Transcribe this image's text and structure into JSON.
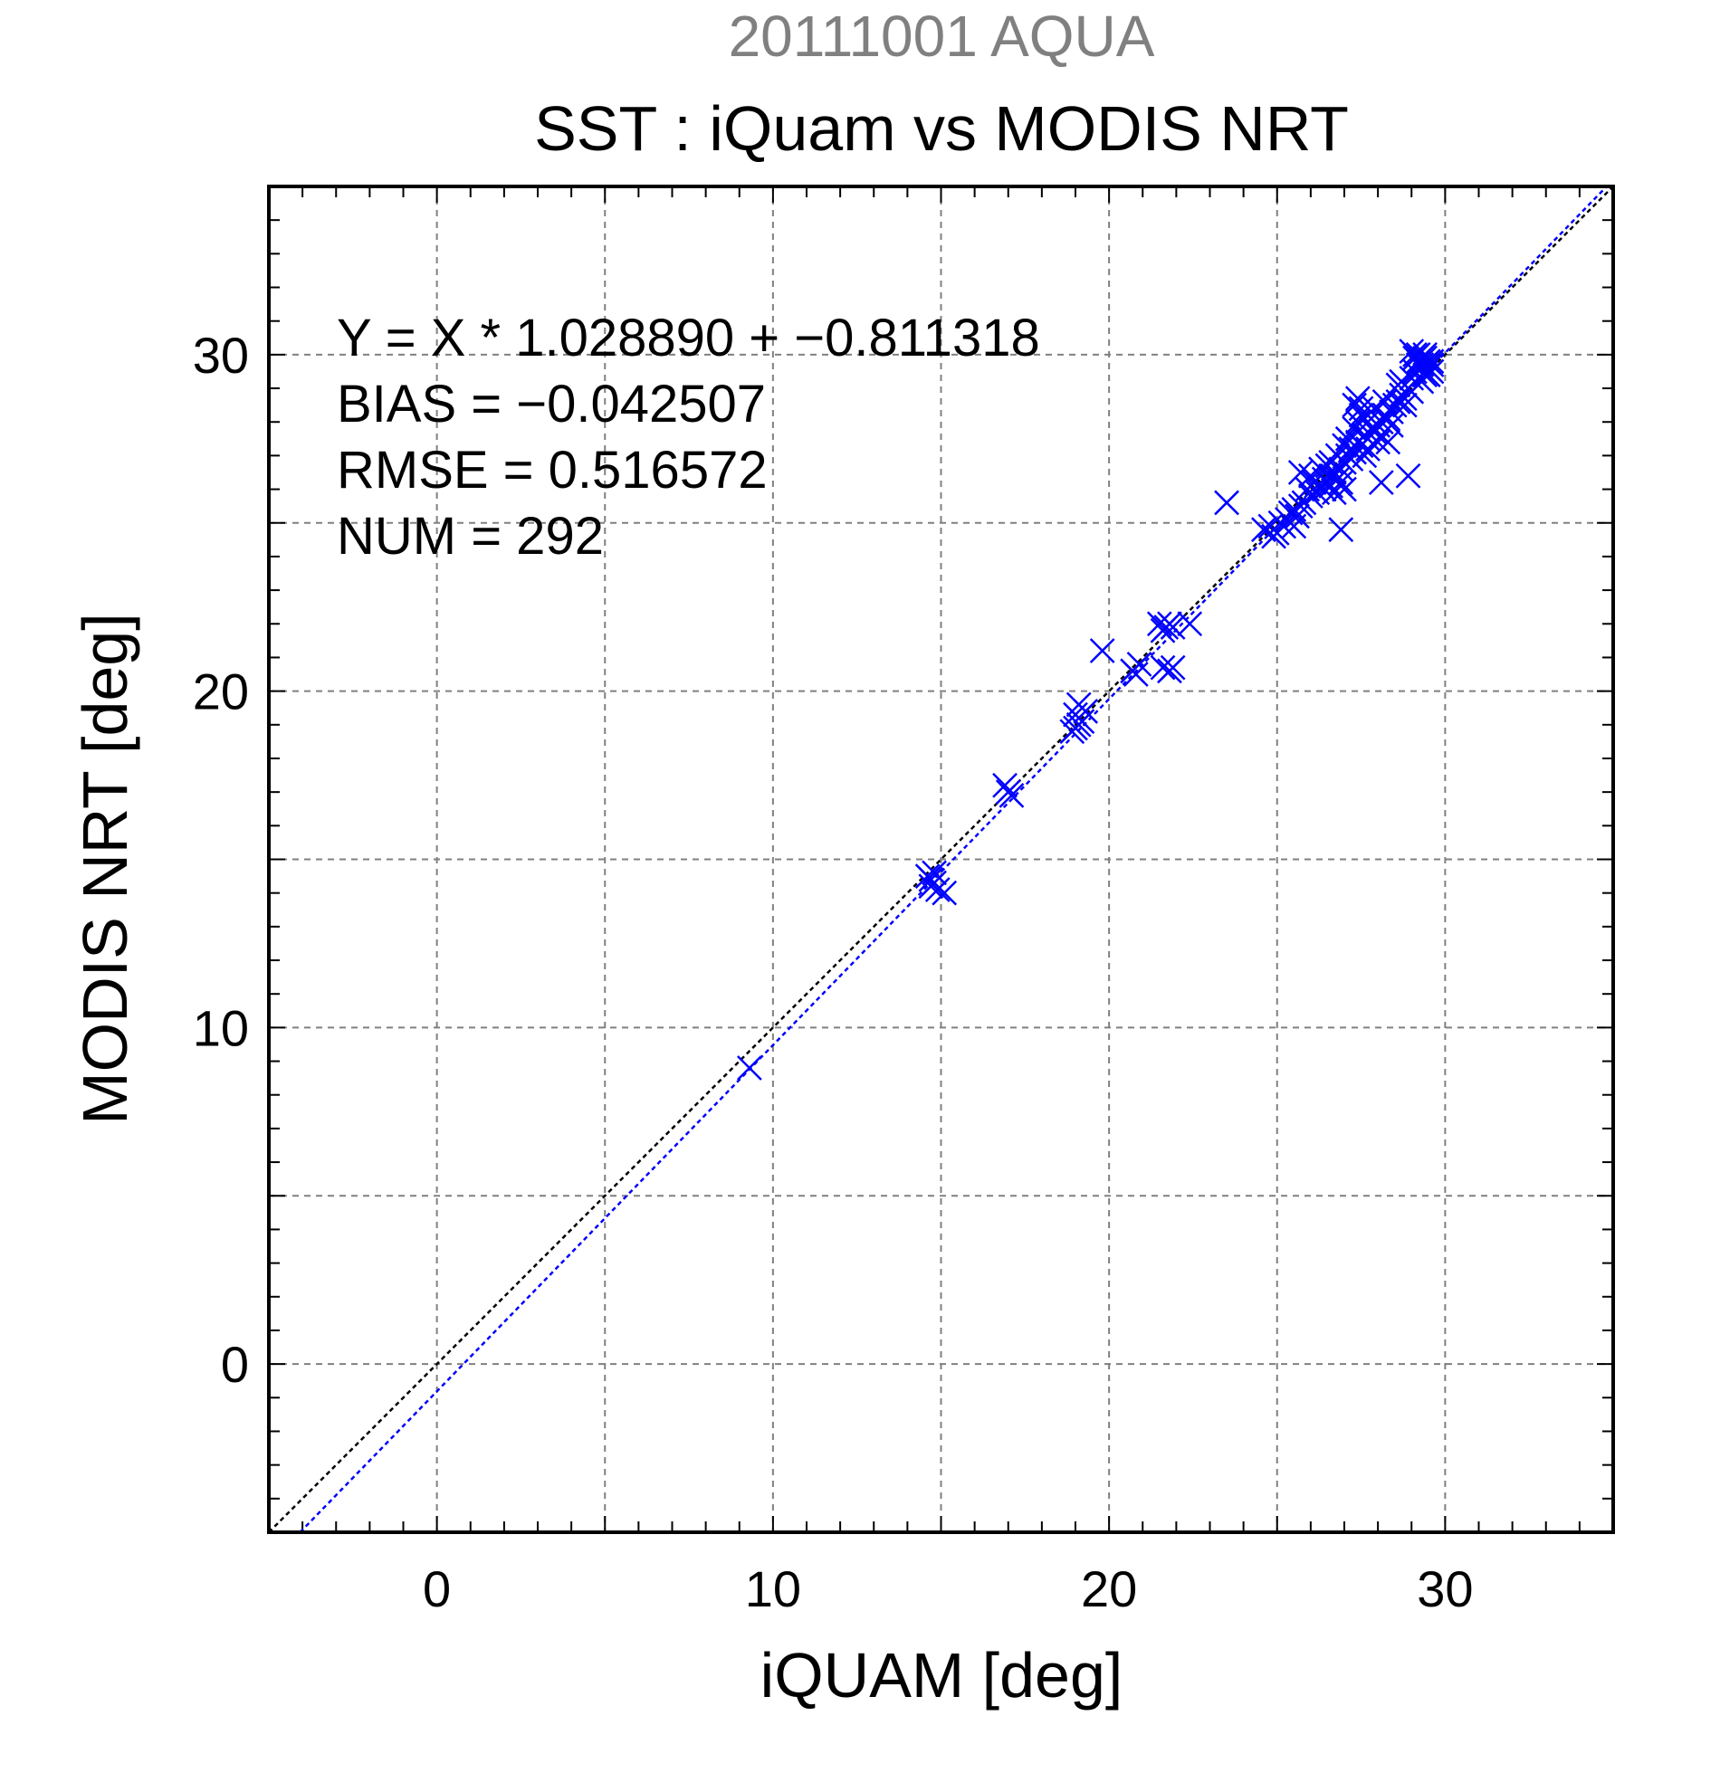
{
  "chart_data": {
    "type": "scatter",
    "title": "SST : iQuam vs MODIS NRT",
    "subtitle": "20111001 AQUA",
    "xlabel": "iQUAM [deg]",
    "ylabel": "MODIS NRT [deg]",
    "xlim": [
      -5,
      35
    ],
    "ylim": [
      -5,
      35
    ],
    "x_ticks": [
      0,
      10,
      20,
      30
    ],
    "y_ticks": [
      0,
      10,
      20,
      30
    ],
    "grid": true,
    "colors": {
      "points": "#0000ff",
      "fit_line": "#0000ff",
      "one_to_one": "#000000",
      "subtitle": "#808080",
      "grid": "#808080"
    },
    "stats": [
      "Y = X * 1.028890 + −0.811318",
      "BIAS = −0.042507",
      "RMSE = 0.516572",
      "NUM = 292"
    ],
    "fit": {
      "slope": 1.02889,
      "intercept": -0.811318
    },
    "series": [
      {
        "points": [
          [
            9.3,
            8.8
          ],
          [
            14.6,
            14.5
          ],
          [
            14.7,
            14.4
          ],
          [
            14.8,
            14.6
          ],
          [
            14.7,
            14.2
          ],
          [
            14.9,
            14.1
          ],
          [
            15.1,
            14.0
          ],
          [
            14.8,
            14.3
          ],
          [
            16.9,
            17.2
          ],
          [
            17.0,
            17.0
          ],
          [
            17.1,
            16.9
          ],
          [
            18.9,
            18.8
          ],
          [
            19.0,
            18.9
          ],
          [
            19.1,
            19.0
          ],
          [
            19.2,
            19.1
          ],
          [
            19.3,
            19.4
          ],
          [
            19.1,
            19.6
          ],
          [
            19.0,
            19.3
          ],
          [
            19.8,
            21.2
          ],
          [
            20.7,
            20.6
          ],
          [
            20.9,
            20.8
          ],
          [
            20.8,
            20.5
          ],
          [
            21.5,
            22.0
          ],
          [
            21.7,
            21.9
          ],
          [
            21.8,
            22.0
          ],
          [
            21.9,
            21.9
          ],
          [
            22.4,
            22.0
          ],
          [
            21.6,
            21.8
          ],
          [
            21.6,
            20.7
          ],
          [
            21.8,
            20.6
          ],
          [
            21.9,
            20.7
          ],
          [
            23.5,
            25.6
          ],
          [
            24.6,
            24.8
          ],
          [
            24.8,
            24.9
          ],
          [
            25.0,
            24.7
          ],
          [
            25.1,
            25.0
          ],
          [
            25.2,
            24.9
          ],
          [
            24.9,
            24.6
          ],
          [
            25.4,
            25.3
          ],
          [
            25.5,
            25.4
          ],
          [
            25.6,
            25.2
          ],
          [
            25.7,
            25.5
          ],
          [
            25.8,
            25.6
          ],
          [
            25.3,
            25.1
          ],
          [
            25.5,
            24.9
          ],
          [
            25.9,
            26.0
          ],
          [
            26.0,
            25.8
          ],
          [
            26.1,
            26.2
          ],
          [
            25.7,
            26.5
          ],
          [
            26.0,
            26.4
          ],
          [
            26.2,
            25.9
          ],
          [
            26.3,
            26.1
          ],
          [
            26.4,
            26.3
          ],
          [
            26.5,
            26.2
          ],
          [
            26.6,
            26.4
          ],
          [
            26.7,
            26.5
          ],
          [
            26.8,
            26.3
          ],
          [
            26.5,
            26.7
          ],
          [
            26.4,
            26.0
          ],
          [
            26.6,
            26.1
          ],
          [
            26.7,
            25.9
          ],
          [
            26.9,
            26.6
          ],
          [
            27.0,
            26.8
          ],
          [
            26.8,
            27.0
          ],
          [
            26.9,
            26.2
          ],
          [
            27.1,
            27.0
          ],
          [
            27.2,
            27.2
          ],
          [
            27.3,
            27.1
          ],
          [
            27.4,
            27.4
          ],
          [
            27.5,
            27.3
          ],
          [
            27.1,
            27.5
          ],
          [
            27.2,
            26.9
          ],
          [
            27.3,
            27.8
          ],
          [
            27.4,
            28.0
          ],
          [
            27.5,
            28.2
          ],
          [
            27.3,
            28.5
          ],
          [
            27.4,
            28.7
          ],
          [
            27.5,
            28.4
          ],
          [
            27.6,
            28.1
          ],
          [
            27.6,
            27.6
          ],
          [
            27.7,
            27.5
          ],
          [
            27.8,
            27.8
          ],
          [
            27.9,
            27.7
          ],
          [
            28.0,
            27.9
          ],
          [
            27.7,
            28.0
          ],
          [
            27.8,
            28.3
          ],
          [
            28.1,
            28.0
          ],
          [
            28.2,
            28.2
          ],
          [
            28.3,
            28.1
          ],
          [
            28.4,
            28.3
          ],
          [
            28.5,
            28.5
          ],
          [
            28.1,
            27.6
          ],
          [
            28.3,
            27.4
          ],
          [
            28.6,
            28.6
          ],
          [
            28.7,
            28.8
          ],
          [
            28.8,
            28.7
          ],
          [
            28.9,
            29.0
          ],
          [
            29.0,
            28.9
          ],
          [
            28.7,
            29.2
          ],
          [
            28.8,
            28.5
          ],
          [
            29.0,
            29.3
          ],
          [
            29.1,
            29.5
          ],
          [
            29.2,
            29.7
          ],
          [
            29.3,
            29.9
          ],
          [
            29.1,
            30.0
          ],
          [
            29.2,
            29.8
          ],
          [
            29.3,
            29.6
          ],
          [
            29.4,
            29.4
          ],
          [
            29.5,
            29.6
          ],
          [
            29.6,
            29.5
          ],
          [
            29.4,
            29.9
          ],
          [
            29.5,
            29.8
          ],
          [
            29.6,
            29.7
          ],
          [
            29.4,
            30.0
          ],
          [
            29.0,
            30.1
          ],
          [
            29.1,
            29.9
          ],
          [
            29.2,
            30.0
          ],
          [
            29.3,
            29.7
          ],
          [
            29.5,
            29.4
          ],
          [
            29.6,
            29.8
          ],
          [
            29.3,
            29.2
          ],
          [
            26.9,
            24.8
          ],
          [
            28.1,
            26.2
          ],
          [
            28.9,
            26.4
          ],
          [
            27.0,
            26.0
          ],
          [
            26.3,
            26.6
          ],
          [
            27.6,
            27.0
          ],
          [
            28.4,
            27.9
          ],
          [
            27.9,
            28.4
          ],
          [
            28.6,
            29.1
          ],
          [
            28.2,
            28.6
          ],
          [
            27.7,
            27.2
          ],
          [
            26.6,
            26.8
          ],
          [
            27.0,
            27.3
          ],
          [
            28.0,
            27.4
          ]
        ]
      }
    ]
  }
}
